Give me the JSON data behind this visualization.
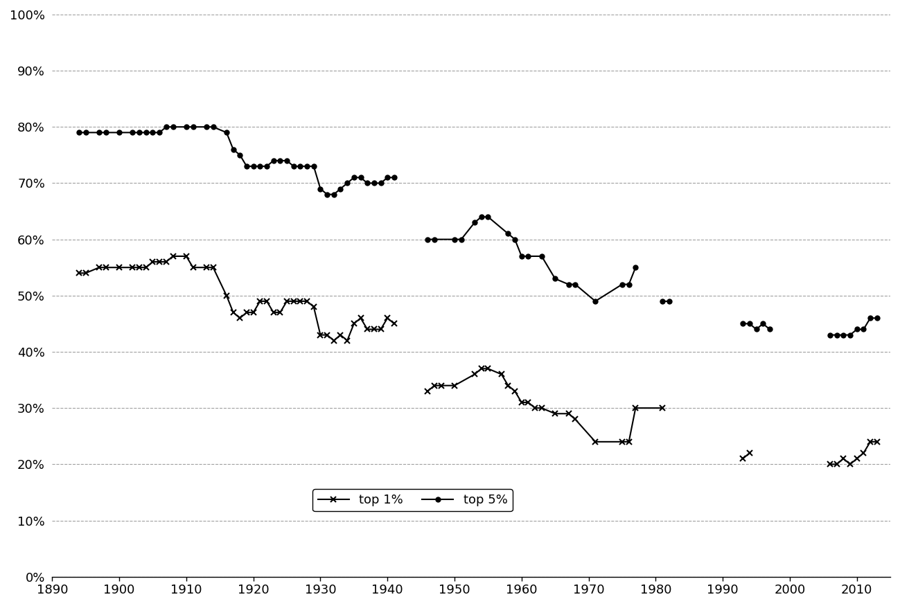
{
  "top1_data": [
    [
      1894,
      0.54
    ],
    [
      1895,
      0.54
    ],
    [
      1897,
      0.55
    ],
    [
      1898,
      0.55
    ],
    [
      1900,
      0.55
    ],
    [
      1902,
      0.55
    ],
    [
      1903,
      0.55
    ],
    [
      1904,
      0.55
    ],
    [
      1905,
      0.56
    ],
    [
      1906,
      0.56
    ],
    [
      1907,
      0.56
    ],
    [
      1908,
      0.57
    ],
    [
      1910,
      0.57
    ],
    [
      1911,
      0.55
    ],
    [
      1913,
      0.55
    ],
    [
      1914,
      0.55
    ],
    [
      1916,
      0.5
    ],
    [
      1917,
      0.47
    ],
    [
      1918,
      0.46
    ],
    [
      1919,
      0.47
    ],
    [
      1920,
      0.47
    ],
    [
      1921,
      0.49
    ],
    [
      1922,
      0.49
    ],
    [
      1923,
      0.47
    ],
    [
      1924,
      0.47
    ],
    [
      1925,
      0.49
    ],
    [
      1926,
      0.49
    ],
    [
      1927,
      0.49
    ],
    [
      1928,
      0.49
    ],
    [
      1929,
      0.48
    ],
    [
      1930,
      0.43
    ],
    [
      1931,
      0.43
    ],
    [
      1932,
      0.42
    ],
    [
      1933,
      0.43
    ],
    [
      1934,
      0.42
    ],
    [
      1935,
      0.45
    ],
    [
      1936,
      0.46
    ],
    [
      1937,
      0.44
    ],
    [
      1938,
      0.44
    ],
    [
      1939,
      0.44
    ],
    [
      1940,
      0.46
    ],
    [
      1941,
      0.45
    ],
    [
      1946,
      0.33
    ],
    [
      1947,
      0.34
    ],
    [
      1948,
      0.34
    ],
    [
      1950,
      0.34
    ],
    [
      1953,
      0.36
    ],
    [
      1954,
      0.37
    ],
    [
      1955,
      0.37
    ],
    [
      1957,
      0.36
    ],
    [
      1958,
      0.34
    ],
    [
      1959,
      0.33
    ],
    [
      1960,
      0.31
    ],
    [
      1961,
      0.31
    ],
    [
      1962,
      0.3
    ],
    [
      1963,
      0.3
    ],
    [
      1965,
      0.29
    ],
    [
      1967,
      0.29
    ],
    [
      1968,
      0.28
    ],
    [
      1971,
      0.24
    ],
    [
      1975,
      0.24
    ],
    [
      1976,
      0.24
    ],
    [
      1977,
      0.3
    ],
    [
      1981,
      0.3
    ],
    [
      1993,
      0.21
    ],
    [
      1994,
      0.22
    ],
    [
      2006,
      0.2
    ],
    [
      2007,
      0.2
    ],
    [
      2008,
      0.21
    ],
    [
      2009,
      0.2
    ],
    [
      2010,
      0.21
    ],
    [
      2011,
      0.22
    ],
    [
      2012,
      0.24
    ],
    [
      2013,
      0.24
    ]
  ],
  "top5_data": [
    [
      1894,
      0.79
    ],
    [
      1895,
      0.79
    ],
    [
      1897,
      0.79
    ],
    [
      1898,
      0.79
    ],
    [
      1900,
      0.79
    ],
    [
      1902,
      0.79
    ],
    [
      1903,
      0.79
    ],
    [
      1904,
      0.79
    ],
    [
      1905,
      0.79
    ],
    [
      1906,
      0.79
    ],
    [
      1907,
      0.8
    ],
    [
      1908,
      0.8
    ],
    [
      1910,
      0.8
    ],
    [
      1911,
      0.8
    ],
    [
      1913,
      0.8
    ],
    [
      1914,
      0.8
    ],
    [
      1916,
      0.79
    ],
    [
      1917,
      0.76
    ],
    [
      1918,
      0.75
    ],
    [
      1919,
      0.73
    ],
    [
      1920,
      0.73
    ],
    [
      1921,
      0.73
    ],
    [
      1922,
      0.73
    ],
    [
      1923,
      0.74
    ],
    [
      1924,
      0.74
    ],
    [
      1925,
      0.74
    ],
    [
      1926,
      0.73
    ],
    [
      1927,
      0.73
    ],
    [
      1928,
      0.73
    ],
    [
      1929,
      0.73
    ],
    [
      1930,
      0.69
    ],
    [
      1931,
      0.68
    ],
    [
      1932,
      0.68
    ],
    [
      1933,
      0.69
    ],
    [
      1934,
      0.7
    ],
    [
      1935,
      0.71
    ],
    [
      1936,
      0.71
    ],
    [
      1937,
      0.7
    ],
    [
      1938,
      0.7
    ],
    [
      1939,
      0.7
    ],
    [
      1940,
      0.71
    ],
    [
      1941,
      0.71
    ],
    [
      1946,
      0.6
    ],
    [
      1947,
      0.6
    ],
    [
      1950,
      0.6
    ],
    [
      1951,
      0.6
    ],
    [
      1953,
      0.63
    ],
    [
      1954,
      0.64
    ],
    [
      1955,
      0.64
    ],
    [
      1958,
      0.61
    ],
    [
      1959,
      0.6
    ],
    [
      1960,
      0.57
    ],
    [
      1961,
      0.57
    ],
    [
      1963,
      0.57
    ],
    [
      1965,
      0.53
    ],
    [
      1967,
      0.52
    ],
    [
      1968,
      0.52
    ],
    [
      1971,
      0.49
    ],
    [
      1975,
      0.52
    ],
    [
      1976,
      0.52
    ],
    [
      1977,
      0.55
    ],
    [
      1981,
      0.49
    ],
    [
      1982,
      0.49
    ],
    [
      1993,
      0.45
    ],
    [
      1994,
      0.45
    ],
    [
      1995,
      0.44
    ],
    [
      1996,
      0.45
    ],
    [
      1997,
      0.44
    ],
    [
      2006,
      0.43
    ],
    [
      2007,
      0.43
    ],
    [
      2008,
      0.43
    ],
    [
      2009,
      0.43
    ],
    [
      2010,
      0.44
    ],
    [
      2011,
      0.44
    ],
    [
      2012,
      0.46
    ],
    [
      2013,
      0.46
    ]
  ],
  "top1_segments": [
    [
      [
        1894,
        0.54
      ],
      [
        1895,
        0.54
      ],
      [
        1897,
        0.55
      ],
      [
        1898,
        0.55
      ],
      [
        1900,
        0.55
      ],
      [
        1902,
        0.55
      ],
      [
        1903,
        0.55
      ],
      [
        1904,
        0.55
      ],
      [
        1905,
        0.56
      ],
      [
        1906,
        0.56
      ],
      [
        1907,
        0.56
      ],
      [
        1908,
        0.57
      ],
      [
        1910,
        0.57
      ],
      [
        1911,
        0.55
      ],
      [
        1913,
        0.55
      ],
      [
        1914,
        0.55
      ],
      [
        1916,
        0.5
      ],
      [
        1917,
        0.47
      ],
      [
        1918,
        0.46
      ],
      [
        1919,
        0.47
      ],
      [
        1920,
        0.47
      ],
      [
        1921,
        0.49
      ],
      [
        1922,
        0.49
      ],
      [
        1923,
        0.47
      ],
      [
        1924,
        0.47
      ],
      [
        1925,
        0.49
      ],
      [
        1926,
        0.49
      ],
      [
        1927,
        0.49
      ],
      [
        1928,
        0.49
      ],
      [
        1929,
        0.48
      ],
      [
        1930,
        0.43
      ],
      [
        1931,
        0.43
      ],
      [
        1932,
        0.42
      ],
      [
        1933,
        0.43
      ],
      [
        1934,
        0.42
      ],
      [
        1935,
        0.45
      ],
      [
        1936,
        0.46
      ],
      [
        1937,
        0.44
      ],
      [
        1938,
        0.44
      ],
      [
        1939,
        0.44
      ],
      [
        1940,
        0.46
      ],
      [
        1941,
        0.45
      ]
    ],
    [
      [
        1946,
        0.33
      ],
      [
        1947,
        0.34
      ],
      [
        1948,
        0.34
      ],
      [
        1950,
        0.34
      ],
      [
        1953,
        0.36
      ],
      [
        1954,
        0.37
      ],
      [
        1955,
        0.37
      ],
      [
        1957,
        0.36
      ],
      [
        1958,
        0.34
      ],
      [
        1959,
        0.33
      ],
      [
        1960,
        0.31
      ],
      [
        1961,
        0.31
      ],
      [
        1962,
        0.3
      ],
      [
        1963,
        0.3
      ],
      [
        1965,
        0.29
      ],
      [
        1967,
        0.29
      ],
      [
        1968,
        0.28
      ],
      [
        1971,
        0.24
      ],
      [
        1975,
        0.24
      ],
      [
        1976,
        0.24
      ],
      [
        1977,
        0.3
      ],
      [
        1981,
        0.3
      ]
    ],
    [
      [
        1993,
        0.21
      ],
      [
        1994,
        0.22
      ]
    ],
    [
      [
        2006,
        0.2
      ],
      [
        2007,
        0.2
      ],
      [
        2008,
        0.21
      ],
      [
        2009,
        0.2
      ],
      [
        2010,
        0.21
      ],
      [
        2011,
        0.22
      ],
      [
        2012,
        0.24
      ],
      [
        2013,
        0.24
      ]
    ]
  ],
  "top5_segments": [
    [
      [
        1894,
        0.79
      ],
      [
        1895,
        0.79
      ],
      [
        1897,
        0.79
      ],
      [
        1898,
        0.79
      ],
      [
        1900,
        0.79
      ],
      [
        1902,
        0.79
      ],
      [
        1903,
        0.79
      ],
      [
        1904,
        0.79
      ],
      [
        1905,
        0.79
      ],
      [
        1906,
        0.79
      ],
      [
        1907,
        0.8
      ],
      [
        1908,
        0.8
      ],
      [
        1910,
        0.8
      ],
      [
        1911,
        0.8
      ],
      [
        1913,
        0.8
      ],
      [
        1914,
        0.8
      ],
      [
        1916,
        0.79
      ],
      [
        1917,
        0.76
      ],
      [
        1918,
        0.75
      ],
      [
        1919,
        0.73
      ],
      [
        1920,
        0.73
      ],
      [
        1921,
        0.73
      ],
      [
        1922,
        0.73
      ],
      [
        1923,
        0.74
      ],
      [
        1924,
        0.74
      ],
      [
        1925,
        0.74
      ],
      [
        1926,
        0.73
      ],
      [
        1927,
        0.73
      ],
      [
        1928,
        0.73
      ],
      [
        1929,
        0.73
      ],
      [
        1930,
        0.69
      ],
      [
        1931,
        0.68
      ],
      [
        1932,
        0.68
      ],
      [
        1933,
        0.69
      ],
      [
        1934,
        0.7
      ],
      [
        1935,
        0.71
      ],
      [
        1936,
        0.71
      ],
      [
        1937,
        0.7
      ],
      [
        1938,
        0.7
      ],
      [
        1939,
        0.7
      ],
      [
        1940,
        0.71
      ],
      [
        1941,
        0.71
      ]
    ],
    [
      [
        1946,
        0.6
      ],
      [
        1947,
        0.6
      ],
      [
        1950,
        0.6
      ],
      [
        1951,
        0.6
      ],
      [
        1953,
        0.63
      ],
      [
        1954,
        0.64
      ],
      [
        1955,
        0.64
      ],
      [
        1958,
        0.61
      ],
      [
        1959,
        0.6
      ],
      [
        1960,
        0.57
      ],
      [
        1961,
        0.57
      ],
      [
        1963,
        0.57
      ],
      [
        1965,
        0.53
      ],
      [
        1967,
        0.52
      ],
      [
        1968,
        0.52
      ],
      [
        1971,
        0.49
      ],
      [
        1975,
        0.52
      ],
      [
        1976,
        0.52
      ],
      [
        1977,
        0.55
      ]
    ],
    [
      [
        1981,
        0.49
      ],
      [
        1982,
        0.49
      ]
    ],
    [
      [
        1993,
        0.45
      ],
      [
        1994,
        0.45
      ],
      [
        1995,
        0.44
      ],
      [
        1996,
        0.45
      ],
      [
        1997,
        0.44
      ]
    ],
    [
      [
        2006,
        0.43
      ],
      [
        2007,
        0.43
      ],
      [
        2008,
        0.43
      ],
      [
        2009,
        0.43
      ],
      [
        2010,
        0.44
      ],
      [
        2011,
        0.44
      ],
      [
        2012,
        0.46
      ],
      [
        2013,
        0.46
      ]
    ]
  ],
  "xlim": [
    1890,
    2015
  ],
  "ylim": [
    0.0,
    1.0
  ],
  "yticks": [
    0.0,
    0.1,
    0.2,
    0.3,
    0.4,
    0.5,
    0.6,
    0.7,
    0.8,
    0.9,
    1.0
  ],
  "xticks": [
    1890,
    1900,
    1910,
    1920,
    1930,
    1940,
    1950,
    1960,
    1970,
    1980,
    1990,
    2000,
    2010
  ],
  "line_color": "#000000",
  "background_color": "#ffffff"
}
